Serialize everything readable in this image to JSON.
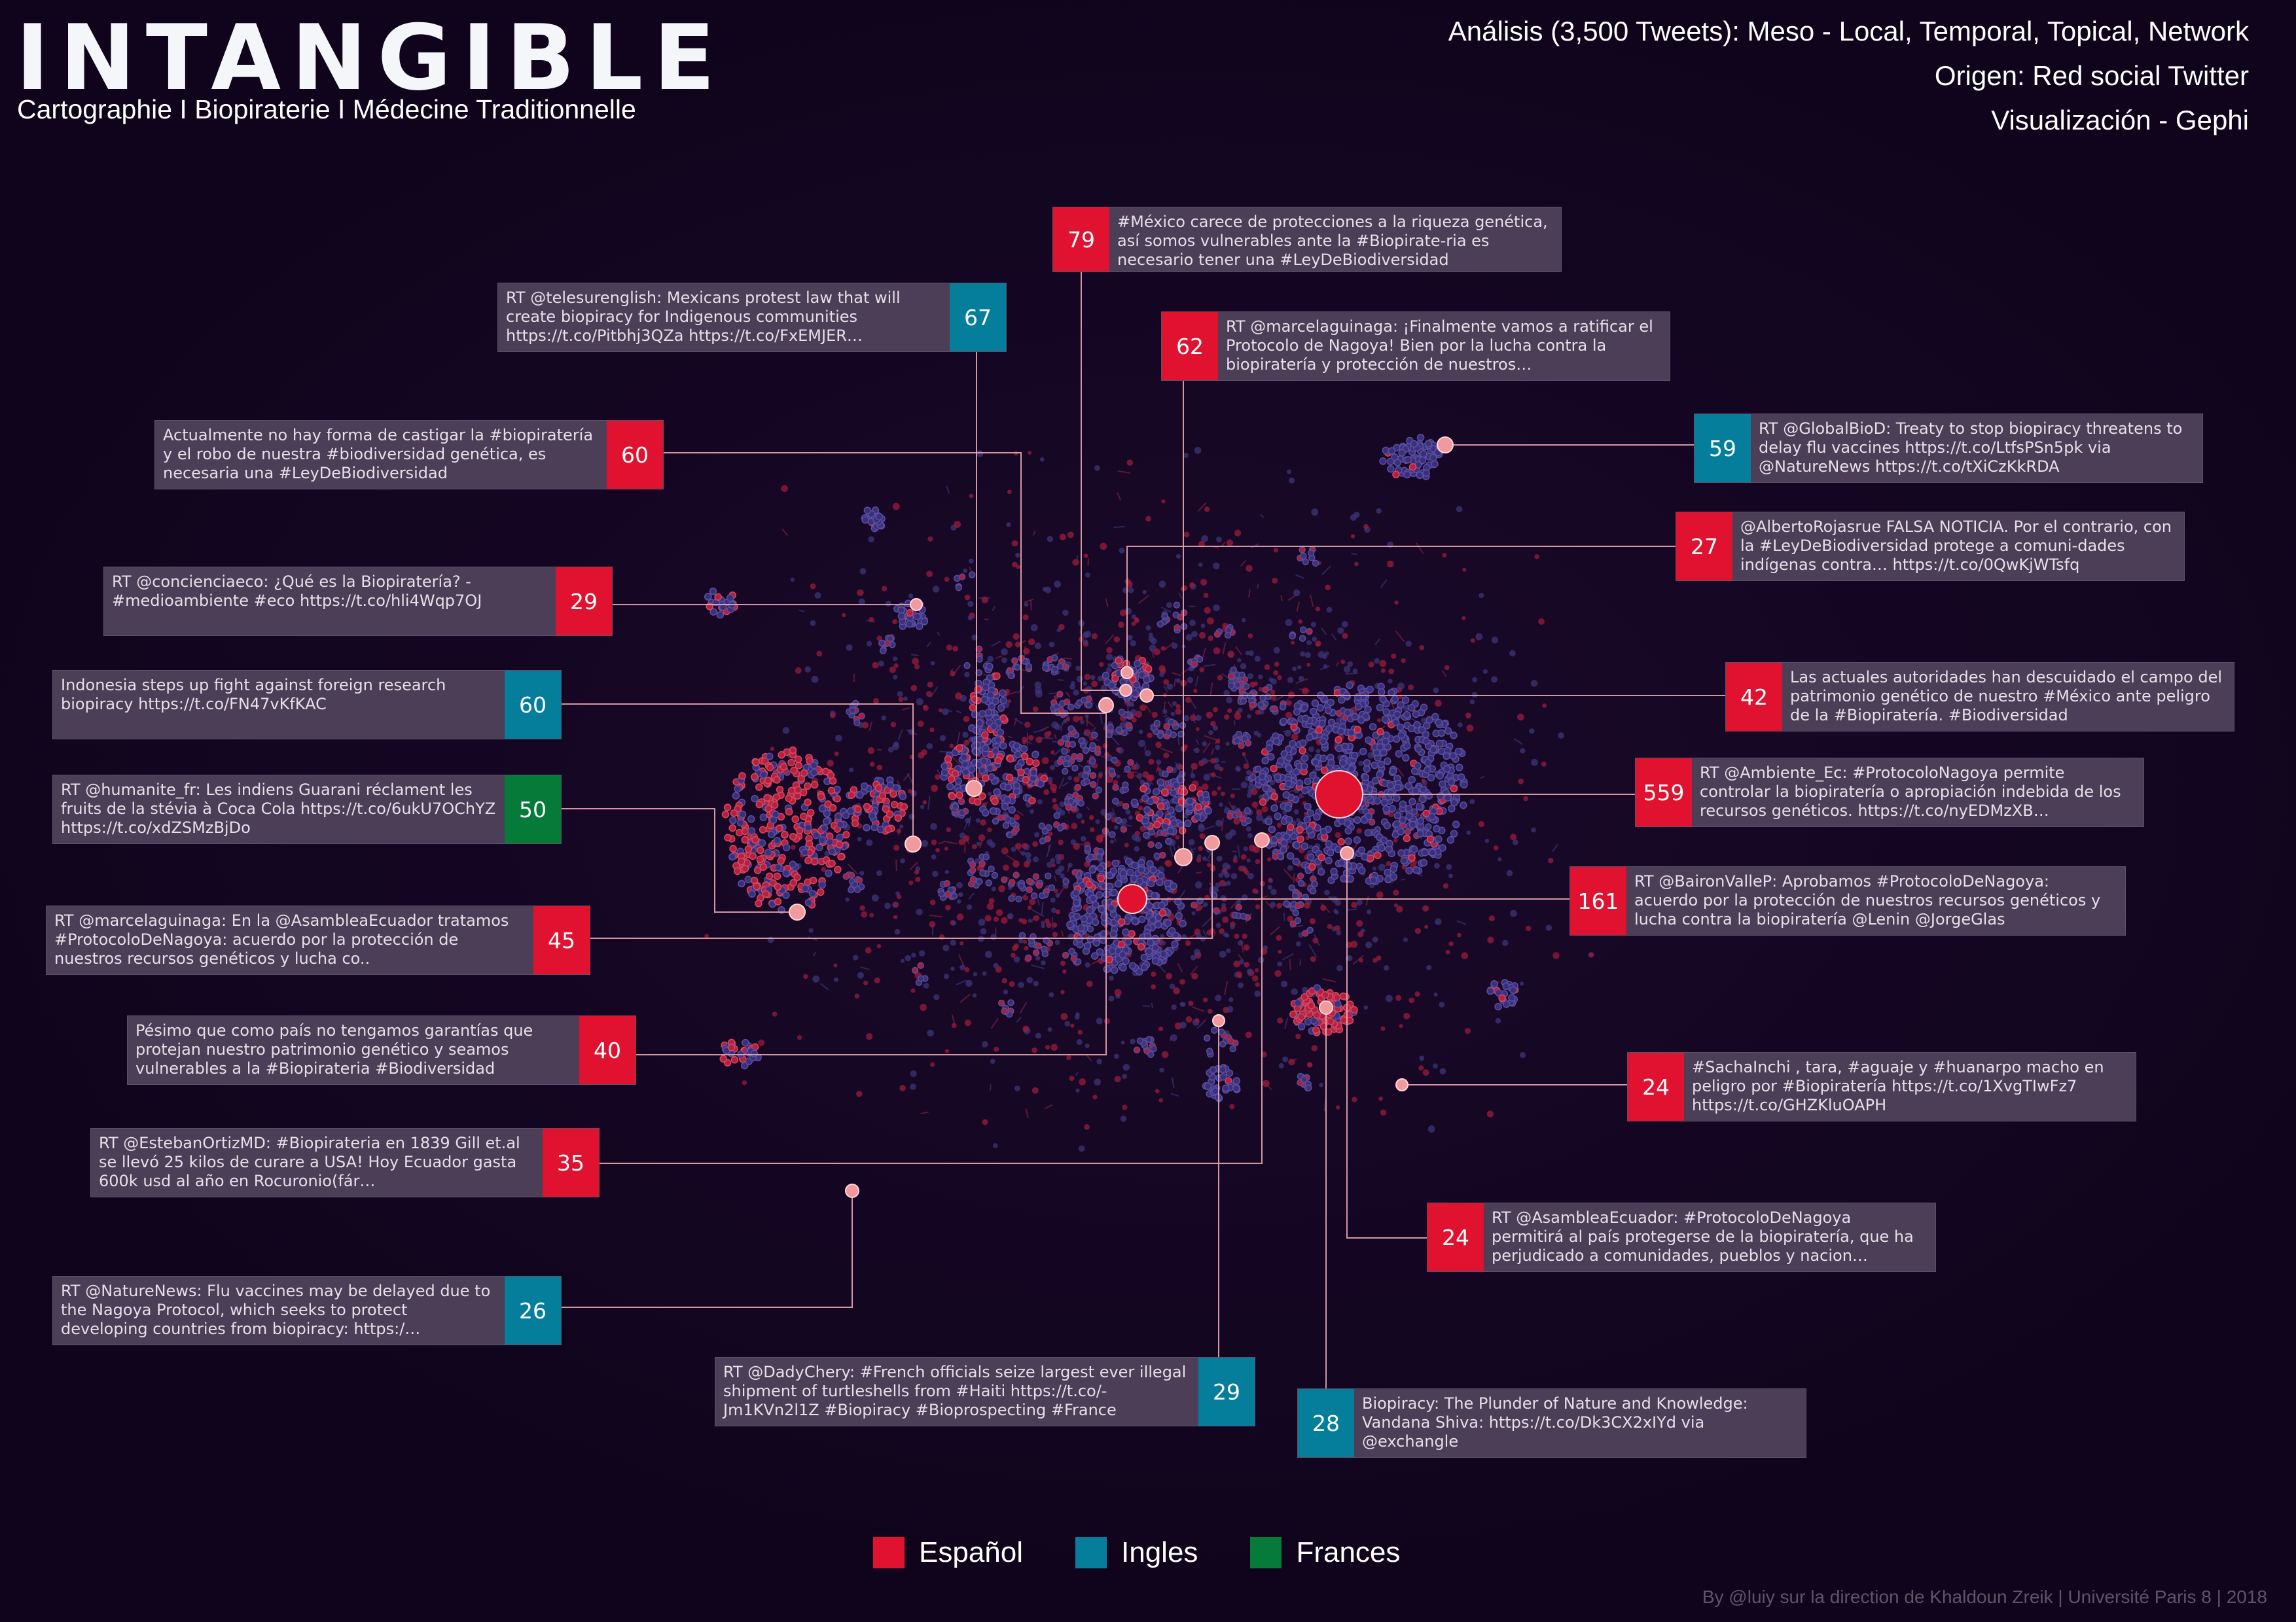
{
  "header": {
    "title": "INTANGIBLE",
    "subtitle": "Cartographie I  Biopiraterie  I  Médecine Traditionnelle",
    "meta": [
      "Análisis (3,500 Tweets): Meso - Local, Temporal, Topical, Network",
      "Origen: Red social Twitter",
      "Visualización - Gephi"
    ]
  },
  "colors": {
    "Español": "#e0122f",
    "Ingles": "#057e9b",
    "Frances": "#067a38",
    "node_es": "#b01f3a",
    "node_other": "#372a6c",
    "highlight": "#f09a9e",
    "leader": "#e9a8ae"
  },
  "legend": [
    {
      "label": "Español",
      "color": "#e0122f"
    },
    {
      "label": "Ingles",
      "color": "#057e9b"
    },
    {
      "label": "Frances",
      "color": "#067a38"
    }
  ],
  "labels": [
    {
      "id": "t79",
      "count": "79",
      "lang": "Español",
      "text": "#México carece de protecciones a la riqueza genética, así somos vulnerables ante la #Biopirate-ria es necesario tener una #LeyDeBiodiversidad"
    },
    {
      "id": "t67",
      "count": "67",
      "lang": "Ingles",
      "text": "RT @telesurenglish: Mexicans protest law that will create biopiracy for Indigenous communities https://t.co/Pitbhj3QZa https://t.co/FxEMJER…"
    },
    {
      "id": "t62",
      "count": "62",
      "lang": "Español",
      "text": "RT @marcelaguinaga: ¡Finalmente vamos a ratificar el Protocolo de Nagoya! Bien por la lucha contra la biopiratería y protección de nuestros…"
    },
    {
      "id": "t60a",
      "count": "60",
      "lang": "Español",
      "text": "Actualmente no hay forma de castigar la #biopiratería y el robo de nuestra #biodiversidad genética, es necesaria una #LeyDeBiodiversidad"
    },
    {
      "id": "t59",
      "count": "59",
      "lang": "Ingles",
      "text": "RT @GlobalBioD: Treaty to stop biopiracy threatens to delay flu vaccines https://t.co/LtfsPSn5pk via @NatureNews https://t.co/tXiCzKkRDA"
    },
    {
      "id": "t27",
      "count": "27",
      "lang": "Español",
      "text": "@AlbertoRojasrue FALSA NOTICIA. Por el contrario, con la #LeyDeBiodiversidad protege a comuni-dades indígenas contra… https://t.co/0QwKjWTsfq"
    },
    {
      "id": "t29a",
      "count": "29",
      "lang": "Español",
      "text": "RT @concienciaeco: ¿Qué es la Biopiratería? - #medioambiente #eco https://t.co/hli4Wqp7OJ"
    },
    {
      "id": "t42",
      "count": "42",
      "lang": "Español",
      "text": "Las actuales autoridades han descuidado el campo del patrimonio genético de nuestro #México ante peligro de la #Biopiratería. #Biodiversidad"
    },
    {
      "id": "t60b",
      "count": "60",
      "lang": "Ingles",
      "text": "Indonesia steps up fight against foreign research biopiracy https://t.co/FN47vKfKAC"
    },
    {
      "id": "t559",
      "count": "559",
      "lang": "Español",
      "text": "RT @Ambiente_Ec: #ProtocoloNagoya permite controlar la biopiratería o apropiación indebida de los recursos genéticos. https://t.co/nyEDMzXB…"
    },
    {
      "id": "t50",
      "count": "50",
      "lang": "Frances",
      "text": "RT @humanite_fr: Les indiens Guarani réclament les fruits de la stévia à Coca Cola https://t.co/6ukU7OChYZ https://t.co/xdZSMzBjDo"
    },
    {
      "id": "t161",
      "count": "161",
      "lang": "Español",
      "text": "RT @BaironValleP: Aprobamos #ProtocoloDeNagoya: acuerdo por la protección de nuestros recursos genéticos y lucha contra la biopiratería @Lenin @JorgeGlas"
    },
    {
      "id": "t45",
      "count": "45",
      "lang": "Español",
      "text": "RT @marcelaguinaga: En la @AsambleaEcuador tratamos #ProtocoloDeNagoya: acuerdo por la protección de nuestros recursos genéticos y lucha co.."
    },
    {
      "id": "t40",
      "count": "40",
      "lang": "Español",
      "text": "Pésimo que como país no tengamos garantías que protejan nuestro patrimonio genético y seamos vulnerables a la #Biopirateria #Biodiversidad"
    },
    {
      "id": "t24a",
      "count": "24",
      "lang": "Español",
      "text": "#SachaInchi , tara, #aguaje y #huanarpo macho en peligro por #Biopiratería https://t.co/1XvgTIwFz7 https://t.co/GHZKluOAPH"
    },
    {
      "id": "t35",
      "count": "35",
      "lang": "Español",
      "text": "RT @EstebanOrtizMD: #Biopirateria en 1839 Gill et.al se llevó 25 kilos de curare a USA! Hoy Ecuador gasta 600k usd  al año en Rocuronio(fár…"
    },
    {
      "id": "t24b",
      "count": "24",
      "lang": "Español",
      "text": "RT @AsambleaEcuador: #ProtocoloDeNagoya permitirá al país protegerse de la biopiratería, que ha perjudicado a comunidades, pueblos y nacion…"
    },
    {
      "id": "t26",
      "count": "26",
      "lang": "Ingles",
      "text": "RT @NatureNews: Flu vaccines may be delayed due to the Nagoya Protocol, which seeks to protect developing countries from biopiracy: https:/…"
    },
    {
      "id": "t29b",
      "count": "29",
      "lang": "Ingles",
      "text": "RT @DadyChery: #French officials seize largest ever illegal shipment of turtleshells from #Haiti https://t.co/-Jm1KVn2l1Z #Biopiracy #Bioprospecting #France"
    },
    {
      "id": "t28",
      "count": "28",
      "lang": "Ingles",
      "text": "Biopiracy: The Plunder of Nature and Knowledge: Vandana Shiva: https://t.co/Dk3CX2xIYd via @exchangle"
    }
  ],
  "credit": "By @luiy sur la direction de Khaldoun Zreik | Université Paris 8 | 2018"
}
